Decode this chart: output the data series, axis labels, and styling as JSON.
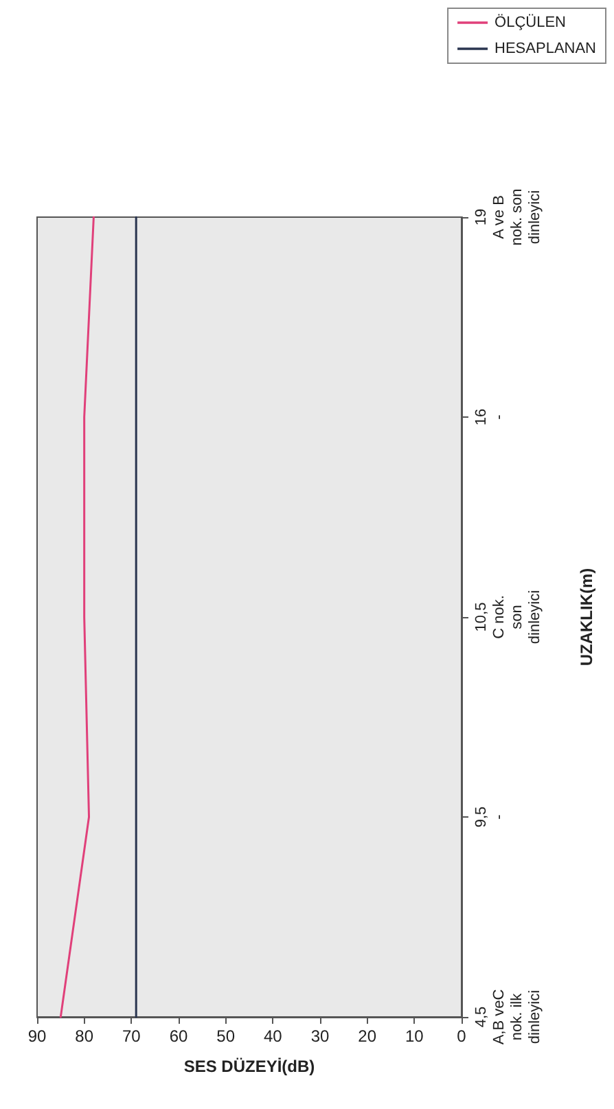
{
  "chart_data": {
    "type": "line",
    "orientation": "horizontal",
    "xlabel": "SES DÜZEYİ(dB)",
    "ylabel": "UZAKLIK(m)",
    "categories": [
      "19\nA ve B\nnok. son\ndinleyici",
      "16\n-",
      "10,5\nC nok.\nson\ndinleyici",
      "9,5\n-",
      "4,5\nA,B veC\nnok. ilk\ndinleyici"
    ],
    "series": [
      {
        "name": "ÖLÇÜLEN",
        "color": "#e0407a",
        "values": [
          78,
          80,
          80,
          79,
          85
        ]
      },
      {
        "name": "HESAPLANAN",
        "color": "#2a3550",
        "values": [
          69,
          69,
          69,
          69,
          69
        ]
      }
    ],
    "xlim": [
      90,
      0
    ],
    "xticks": [
      90,
      80,
      70,
      60,
      50,
      40,
      30,
      20,
      10,
      0
    ],
    "grid": false,
    "legend": "right",
    "marker": "none",
    "line_style": "solid"
  }
}
